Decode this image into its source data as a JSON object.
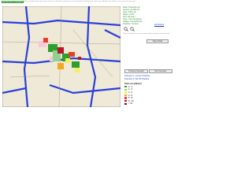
{
  "header": {
    "badge": "Soil Erosion Calculator",
    "note": "Select a field on the map, then choose an erosion scenario to see the predicted soil loss for each area. Results are shown in tons per acre per year."
  },
  "panel": {
    "lines": [
      "Field: Township 24",
      "Section 14 NE 1/4",
      "Area: 158.2 ac",
      "Slope: 2-6%",
      "Soil: Silt loam",
      "Crop: Corn-Soybean",
      "Tillage: Conventional",
      "Practice: Contour"
    ],
    "link": "Full Extent",
    "hint": "Click a colored area to see the soil loss value for that location.",
    "tool_button": "Select Field",
    "buttons": [
      "Previous Scenario",
      "Next Scenario"
    ],
    "scenario_title": "Scenario 1: Current Practice",
    "scenario_sub": "Scenario 2: No-Till Practice"
  },
  "legend": {
    "title": "Soil Loss (t/ac/yr)",
    "items": [
      {
        "label": "0 - 1",
        "color": "#2e9e2e"
      },
      {
        "label": "1 - 2",
        "color": "#8fd18f"
      },
      {
        "label": "2 - 3",
        "color": "#f2ef5a"
      },
      {
        "label": "3 - 5",
        "color": "#f5a623"
      },
      {
        "label": "5 - 8",
        "color": "#e8402a"
      },
      {
        "label": "8 - 12",
        "color": "#c0122a"
      },
      {
        "label": "> 12",
        "color": "#7a0a1a"
      }
    ]
  }
}
